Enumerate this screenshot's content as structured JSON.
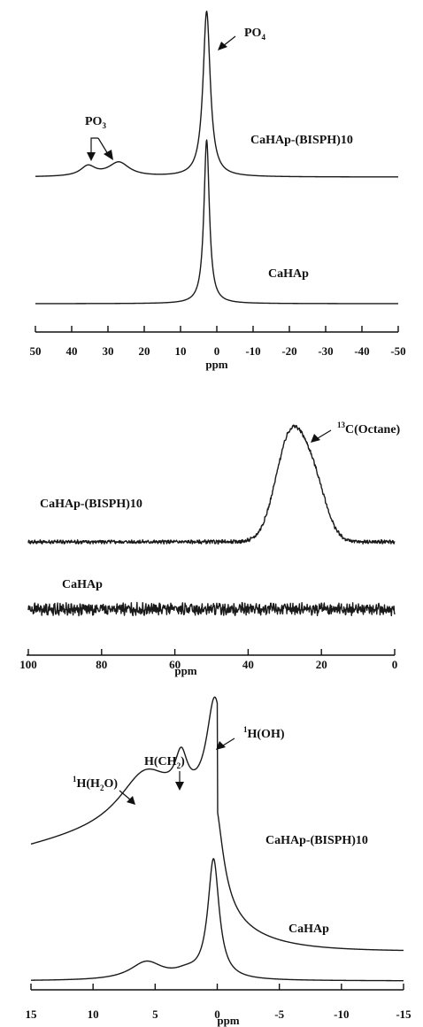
{
  "chart_data": [
    {
      "type": "line",
      "xlabel": "ppm",
      "xlim": [
        50,
        -50
      ],
      "x_ticks": [
        50,
        40,
        30,
        20,
        10,
        0,
        -10,
        -20,
        -30,
        -40,
        -50
      ],
      "tick_labels": [
        "50",
        "40",
        "30",
        "20",
        "10",
        "0",
        "-10",
        "-20",
        "-30",
        "-40",
        "-50"
      ],
      "series": [
        {
          "name": "CaHAp-(BISPH)10",
          "baseline": 0.0,
          "peaks": [
            {
              "center": 2.8,
              "height": 1.0,
              "width": 1.2
            },
            {
              "center": 35.5,
              "height": 0.06,
              "width": 2.5
            },
            {
              "center": 27.0,
              "height": 0.085,
              "width": 3.5
            }
          ]
        },
        {
          "name": "CaHAp",
          "baseline": 0.0,
          "peaks": [
            {
              "center": 2.8,
              "height": 1.0,
              "width": 0.9
            }
          ]
        }
      ],
      "annotations": {
        "po4": {
          "base": "PO",
          "sub": "4"
        },
        "po3": {
          "base": "PO",
          "sub": "3"
        }
      }
    },
    {
      "type": "line",
      "xlabel": "ppm",
      "xlim": [
        100,
        0
      ],
      "x_ticks": [
        100,
        80,
        60,
        40,
        20,
        0
      ],
      "tick_labels": [
        "100",
        "80",
        "60",
        "40",
        "20",
        "0"
      ],
      "series": [
        {
          "name": "CaHAp-(BISPH)10",
          "baseline": 0.0,
          "peaks": [
            {
              "center": 28.5,
              "height": 1.0,
              "width": 4.0
            },
            {
              "center": 22.0,
              "height": 0.5,
              "width": 3.5
            }
          ],
          "noise": 0.015
        },
        {
          "name": "CaHAp",
          "baseline": 0.0,
          "peaks": [],
          "noise": 0.045
        }
      ],
      "annotations": {
        "c13": {
          "sup": "13",
          "base": "C(Octane)"
        }
      }
    },
    {
      "type": "line",
      "xlabel": "ppm",
      "xlim": [
        15,
        -15
      ],
      "x_ticks": [
        15,
        10,
        5,
        0,
        -5,
        -10,
        -15
      ],
      "tick_labels": [
        "15",
        "10",
        "5",
        "0",
        "-5",
        "-10",
        "-15"
      ],
      "series": [
        {
          "name": "CaHAp-(BISPH)10",
          "peaks": [
            {
              "center": 0.2,
              "height": 1.0,
              "width": 0.8
            },
            {
              "center": 2.9,
              "height": 0.38,
              "width": 0.6
            },
            {
              "center": 5.8,
              "height": 0.5,
              "width": 2.6
            }
          ]
        },
        {
          "name": "CaHAp",
          "peaks": [
            {
              "center": 0.3,
              "height": 1.0,
              "width": 0.55
            },
            {
              "center": 5.7,
              "height": 0.15,
              "width": 1.6
            },
            {
              "center": 2.5,
              "height": 0.05,
              "width": 1.2
            }
          ]
        }
      ],
      "annotations": {
        "h_oh": {
          "sup": "1",
          "base": "H(OH)"
        },
        "h_ch2": {
          "base": "H(CH",
          "sub": "2",
          "tail": ")"
        },
        "h_h2o": {
          "sup": "1",
          "base": "H(H",
          "sub": "2",
          "tail": "O)"
        }
      }
    }
  ]
}
